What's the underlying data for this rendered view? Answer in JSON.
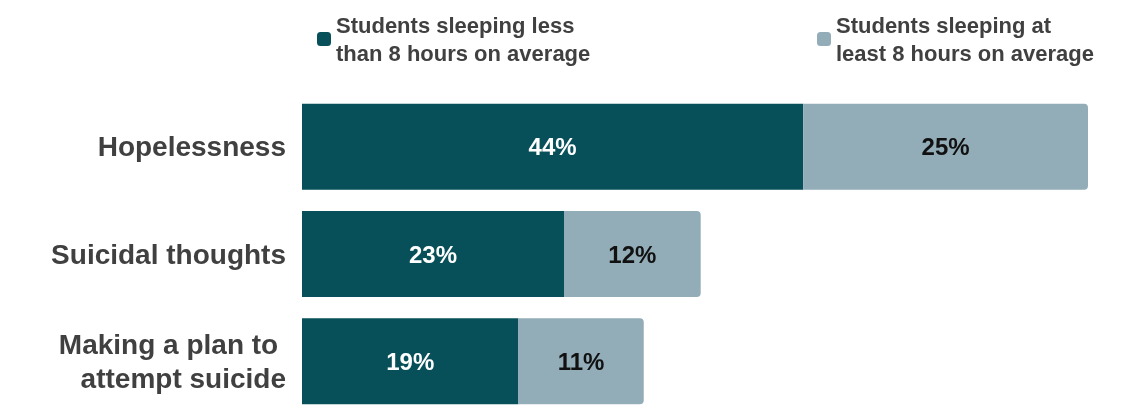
{
  "chart_data": {
    "type": "bar",
    "orientation": "horizontal",
    "stacked": true,
    "legend": "top",
    "categories": [
      "Hopelessness",
      "Suicidal thoughts",
      "Making a plan to attempt suicide"
    ],
    "series": [
      {
        "name": "Students sleeping less than 8 hours on average",
        "color": "#07505a",
        "values": [
          44,
          23,
          19
        ],
        "value_labels": [
          "44%",
          "23%",
          "19%"
        ]
      },
      {
        "name": "Students sleeping at least 8 hours on average",
        "color": "#92adb8",
        "values": [
          25,
          12,
          11
        ],
        "value_labels": [
          "25%",
          "12%",
          "11%"
        ]
      }
    ]
  }
}
